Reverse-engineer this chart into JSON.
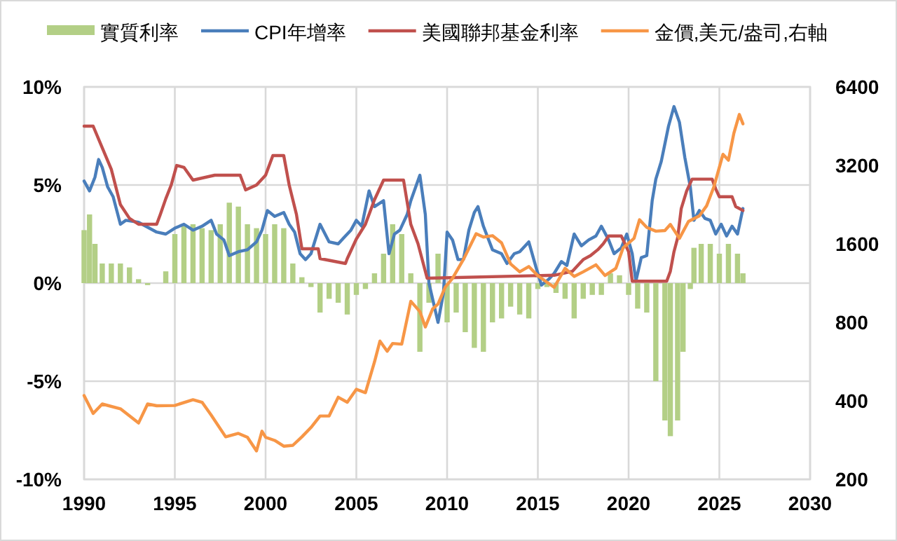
{
  "chart_data": {
    "type": "line",
    "legend": "top",
    "grid": true,
    "log": "y2",
    "xlim": [
      1990,
      2030
    ],
    "xticks": [
      1990,
      1995,
      2000,
      2005,
      2010,
      2015,
      2020,
      2025,
      2030
    ],
    "ylim": [
      -10,
      10
    ],
    "yticks": [
      {
        "value": -10,
        "label": "-10%"
      },
      {
        "value": -5,
        "label": "-5%"
      },
      {
        "value": 0,
        "label": "0%"
      },
      {
        "value": 5,
        "label": "5%"
      },
      {
        "value": 10,
        "label": "10%"
      }
    ],
    "y2lim": [
      200,
      6400
    ],
    "y2ticks": [
      200,
      400,
      800,
      1600,
      3200,
      6400
    ],
    "series": [
      {
        "name": "實質利率",
        "type": "bar",
        "color": "#b3cf86",
        "x": [
          1990,
          1990.3,
          1990.6,
          1991,
          1991.5,
          1992,
          1992.5,
          1993,
          1993.5,
          1994,
          1994.5,
          1995,
          1995.5,
          1996,
          1996.5,
          1997,
          1997.5,
          1998,
          1998.5,
          1999,
          1999.5,
          2000,
          2000.5,
          2001,
          2001.5,
          2002,
          2002.5,
          2003,
          2003.5,
          2004,
          2004.5,
          2005,
          2005.5,
          2006,
          2006.5,
          2007,
          2007.5,
          2008,
          2008.5,
          2009,
          2009.5,
          2010,
          2010.5,
          2011,
          2011.5,
          2012,
          2012.5,
          2013,
          2013.5,
          2014,
          2014.5,
          2015,
          2015.5,
          2016,
          2016.5,
          2017,
          2017.5,
          2018,
          2018.5,
          2019,
          2019.5,
          2020,
          2020.5,
          2021,
          2021.5,
          2022,
          2022.3,
          2022.7,
          2023,
          2023.4,
          2023.6,
          2024,
          2024.5,
          2025,
          2025.5,
          2026,
          2026.3
        ],
        "values": [
          2.7,
          3.5,
          2.0,
          1.0,
          1.0,
          1.0,
          0.8,
          0.2,
          -0.1,
          0.0,
          0.6,
          2.5,
          3.0,
          3.0,
          2.8,
          2.7,
          3.0,
          4.1,
          3.9,
          3.0,
          2.8,
          2.5,
          3.0,
          2.8,
          1.0,
          0.3,
          -0.2,
          -1.5,
          -0.8,
          -1.0,
          -1.6,
          -0.6,
          -0.3,
          0.5,
          1.5,
          3.0,
          2.5,
          0.5,
          -3.5,
          -1.0,
          1.5,
          -2.0,
          -1.5,
          -2.5,
          -3.3,
          -3.5,
          -2.0,
          -1.8,
          -1.2,
          -1.6,
          -1.8,
          -0.3,
          -0.2,
          -0.5,
          -0.8,
          -1.8,
          -0.8,
          -0.6,
          -0.6,
          0.5,
          0.4,
          -0.6,
          -1.3,
          -1.5,
          -5.0,
          -7.0,
          -7.8,
          -7.0,
          -3.5,
          -0.3,
          1.8,
          2.0,
          2.0,
          1.5,
          2.0,
          1.5,
          0.5
        ]
      },
      {
        "name": "CPI年增率",
        "color": "#4a7ebb",
        "x": [
          1990,
          1990.3,
          1990.6,
          1990.8,
          1991,
          1991.3,
          1991.6,
          1992,
          1992.3,
          1993,
          1994,
          1994.5,
          1995,
          1995.5,
          1996,
          1996.5,
          1997,
          1997.3,
          1997.7,
          1998,
          1998.5,
          1999,
          1999.5,
          1999.8,
          2000.1,
          2000.5,
          2001,
          2001.3,
          2001.6,
          2001.9,
          2002.2,
          2002.5,
          2003,
          2003.5,
          2004,
          2004.3,
          2004.7,
          2005,
          2005.3,
          2005.7,
          2006,
          2006.5,
          2006.8,
          2007.1,
          2007.4,
          2007.8,
          2008,
          2008.5,
          2008.8,
          2009,
          2009.5,
          2009.8,
          2010,
          2010.3,
          2010.6,
          2010.9,
          2011.2,
          2011.5,
          2011.7,
          2012,
          2012.5,
          2013,
          2013.3,
          2013.7,
          2014,
          2014.5,
          2014.9,
          2015.2,
          2015.6,
          2015.9,
          2016.3,
          2016.6,
          2017,
          2017.4,
          2017.8,
          2018.2,
          2018.5,
          2018.9,
          2019.2,
          2019.6,
          2019.9,
          2020.2,
          2020.4,
          2020.7,
          2021,
          2021.3,
          2021.5,
          2021.8,
          2022.2,
          2022.5,
          2022.8,
          2023.1,
          2023.4,
          2023.6,
          2023.9,
          2024.2,
          2024.5,
          2024.8,
          2025.1,
          2025.4,
          2025.7,
          2026,
          2026.3
        ],
        "values": [
          5.2,
          4.7,
          5.4,
          6.3,
          5.9,
          4.9,
          4.4,
          3.0,
          3.2,
          3.1,
          2.6,
          2.5,
          2.8,
          3.0,
          2.7,
          2.9,
          3.2,
          2.5,
          2.2,
          1.4,
          1.6,
          1.7,
          2.1,
          2.7,
          3.7,
          3.4,
          3.6,
          3.0,
          2.6,
          1.5,
          1.2,
          1.5,
          3.0,
          2.1,
          2.0,
          2.3,
          2.7,
          3.2,
          2.9,
          4.7,
          3.9,
          4.2,
          1.5,
          2.5,
          2.7,
          3.5,
          4.2,
          5.5,
          3.5,
          0.0,
          -2.0,
          -0.5,
          2.6,
          2.2,
          1.2,
          1.2,
          2.7,
          3.6,
          3.9,
          2.9,
          1.7,
          1.5,
          1.0,
          1.5,
          1.6,
          2.1,
          0.8,
          -0.1,
          0.2,
          0.5,
          1.1,
          0.9,
          2.5,
          1.9,
          2.2,
          2.4,
          2.9,
          2.2,
          1.5,
          1.8,
          2.5,
          1.5,
          0.1,
          1.3,
          1.4,
          4.2,
          5.3,
          6.2,
          8.0,
          9.0,
          8.2,
          6.4,
          4.9,
          3.2,
          3.7,
          3.3,
          3.2,
          2.5,
          3.0,
          2.4,
          2.9,
          2.5,
          3.8
        ]
      },
      {
        "name": "美國聯邦基金利率",
        "color": "#c0504d",
        "x": [
          1990,
          1990.5,
          1991,
          1991.5,
          1992,
          1992.5,
          1993,
          1994,
          1994.2,
          1994.5,
          1994.8,
          1995.1,
          1995.5,
          1996,
          1997.2,
          1998.6,
          1998.9,
          1999.5,
          2000,
          2000.4,
          2001,
          2001.3,
          2001.7,
          2002,
          2002.9,
          2003,
          2004.4,
          2004.5,
          2005,
          2005.5,
          2006,
          2006.5,
          2007.6,
          2008,
          2008.4,
          2008.9,
          2015.9,
          2016.9,
          2017.3,
          2017.5,
          2017.9,
          2018.3,
          2018.6,
          2018.9,
          2019.6,
          2019.8,
          2020,
          2020.2,
          2022.1,
          2022.3,
          2022.5,
          2022.7,
          2022.9,
          2023.2,
          2023.5,
          2024.6,
          2024.8,
          2025,
          2025.7,
          2025.9,
          2026.3
        ],
        "values": [
          8.0,
          8.0,
          6.9,
          5.8,
          4.0,
          3.3,
          3.0,
          3.0,
          3.5,
          4.3,
          5.0,
          6.0,
          5.9,
          5.25,
          5.5,
          5.5,
          4.75,
          5.0,
          5.5,
          6.5,
          6.5,
          5.0,
          3.5,
          1.75,
          1.75,
          1.25,
          1.0,
          1.25,
          2.25,
          3.0,
          4.25,
          5.25,
          5.25,
          3.0,
          2.0,
          0.25,
          0.4,
          0.6,
          1.0,
          1.2,
          1.4,
          1.7,
          2.0,
          2.4,
          2.4,
          2.0,
          1.6,
          0.1,
          0.1,
          0.6,
          1.6,
          2.3,
          3.8,
          4.7,
          5.3,
          5.3,
          4.8,
          4.4,
          4.4,
          3.9,
          3.7
        ]
      },
      {
        "name": "金價,美元/盎司,右軸",
        "axis": "y2",
        "color": "#f79646",
        "x": [
          1990,
          1990.5,
          1991,
          1992,
          1993,
          1993.5,
          1994,
          1995,
          1996,
          1996.5,
          1997,
          1997.8,
          1998.5,
          1999,
          1999.5,
          1999.8,
          2000,
          2000.5,
          2001,
          2001.5,
          2002,
          2002.5,
          2003,
          2003.5,
          2004,
          2004.5,
          2005,
          2005.5,
          2006,
          2006.3,
          2006.7,
          2007,
          2007.5,
          2008,
          2008.5,
          2008.8,
          2009.2,
          2009.5,
          2009.9,
          2010.3,
          2010.9,
          2011.6,
          2012,
          2012.5,
          2013,
          2013.5,
          2014,
          2014.5,
          2015,
          2015.9,
          2016.5,
          2017,
          2017.5,
          2018.2,
          2018.7,
          2019.3,
          2019.7,
          2020.3,
          2020.6,
          2021,
          2021.5,
          2022,
          2022.3,
          2022.8,
          2023.3,
          2023.9,
          2024.3,
          2024.7,
          2025.2,
          2025.5,
          2025.8,
          2026.1,
          2026.3
        ],
        "values": [
          419,
          358,
          389,
          373,
          329,
          389,
          383,
          384,
          404,
          395,
          353,
          291,
          300,
          290,
          257,
          306,
          290,
          282,
          268,
          270,
          291,
          316,
          350,
          350,
          413,
          395,
          443,
          430,
          564,
          678,
          620,
          664,
          660,
          964,
          880,
          768,
          900,
          940,
          1092,
          1180,
          1395,
          1750,
          1700,
          1720,
          1615,
          1340,
          1250,
          1310,
          1208,
          1090,
          1290,
          1200,
          1250,
          1330,
          1210,
          1290,
          1546,
          1680,
          1980,
          1850,
          1790,
          1800,
          1900,
          1680,
          1950,
          2050,
          2240,
          2650,
          3530,
          3350,
          4250,
          5020,
          4620
        ]
      }
    ]
  }
}
